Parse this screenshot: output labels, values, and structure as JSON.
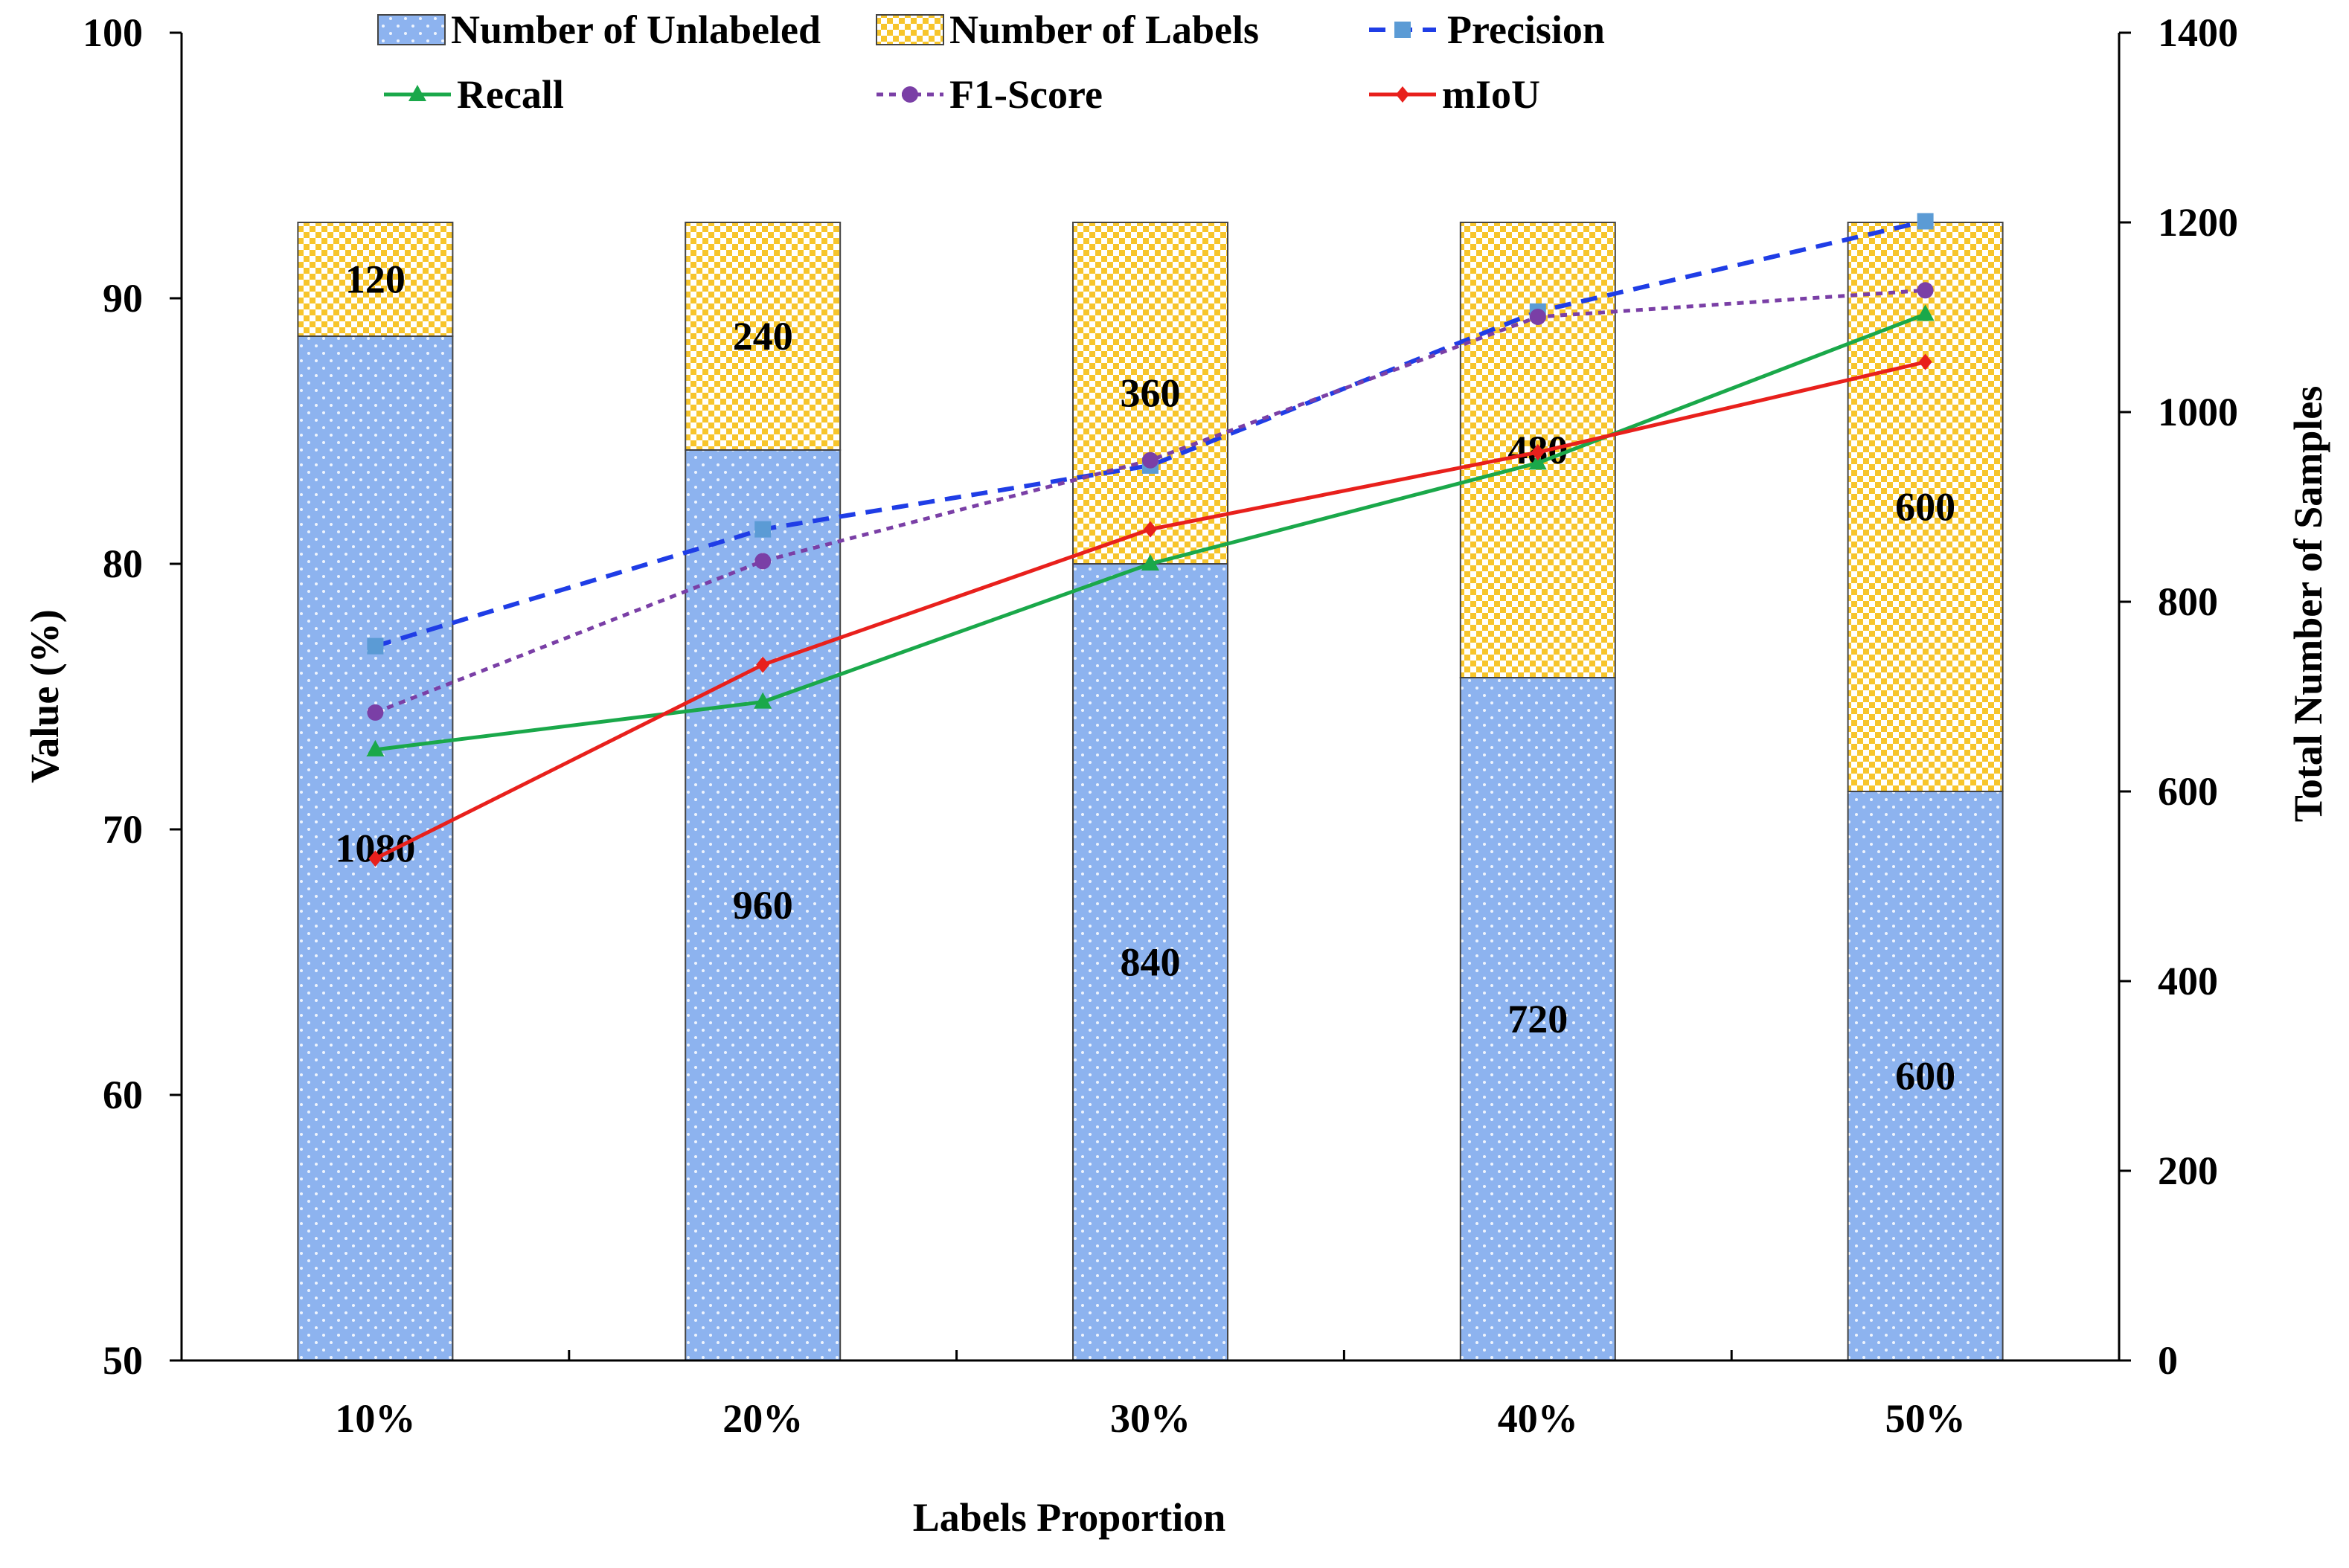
{
  "chart_data": {
    "type": "bar",
    "stacked": true,
    "dual_axis": true,
    "categories": [
      "10%",
      "20%",
      "30%",
      "40%",
      "50%"
    ],
    "xlabel": "Labels Proportion",
    "ylabel_left": "Value (%)",
    "ylabel_right": "Total Number of Samples",
    "ylim_left": [
      50,
      100
    ],
    "yticks_left": [
      50,
      60,
      70,
      80,
      90,
      100
    ],
    "ylim_right": [
      0,
      1400
    ],
    "yticks_right": [
      0,
      200,
      400,
      600,
      800,
      1000,
      1200,
      1400
    ],
    "grid": false,
    "legend_placement": "top",
    "bar_series": [
      {
        "name": "Number of Unlabeled",
        "values": [
          1080,
          960,
          840,
          720,
          600
        ],
        "labels": [
          "1080",
          "960",
          "840",
          "720",
          "600"
        ],
        "color": "#8db3ef",
        "pattern": "dots"
      },
      {
        "name": "Number of Labels",
        "values": [
          120,
          240,
          360,
          480,
          600
        ],
        "labels": [
          "120",
          "240",
          "360",
          "480",
          "600"
        ],
        "color": "#f7c52b",
        "pattern": "checker"
      }
    ],
    "line_series": [
      {
        "name": "Precision",
        "values": [
          76.9,
          81.3,
          83.7,
          89.5,
          92.9
        ],
        "color": "#1f3de6",
        "dash": "dashed",
        "marker": "square",
        "marker_color": "#5b9bd5"
      },
      {
        "name": "Recall",
        "values": [
          73.0,
          74.8,
          80.0,
          83.8,
          89.4
        ],
        "color": "#1aa84a",
        "dash": "solid",
        "marker": "triangle",
        "marker_color": "#1aa84a"
      },
      {
        "name": "F1-Score",
        "values": [
          74.4,
          80.1,
          83.9,
          89.3,
          90.3
        ],
        "color": "#7a3fa6",
        "dash": "dotted",
        "marker": "circle",
        "marker_color": "#7a3fa6"
      },
      {
        "name": "mIoU",
        "values": [
          68.9,
          76.2,
          81.3,
          84.2,
          87.6
        ],
        "color": "#e8201c",
        "dash": "solid",
        "marker": "diamond",
        "marker_color": "#e8201c"
      }
    ]
  }
}
